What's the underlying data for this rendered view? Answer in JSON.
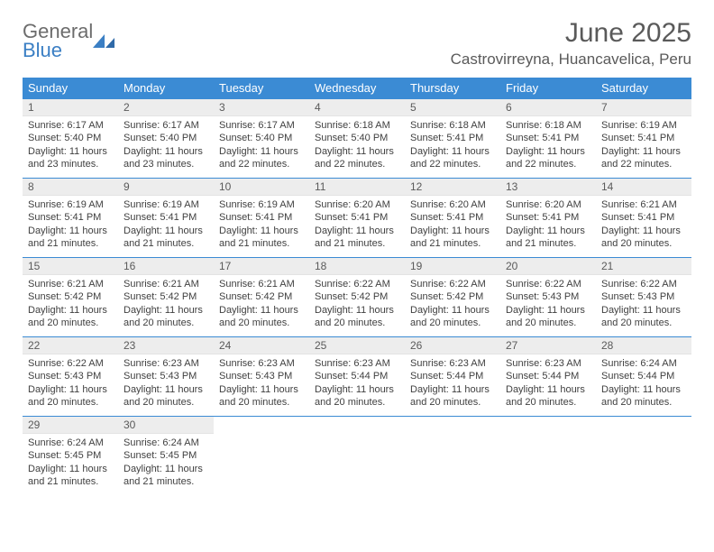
{
  "brand": {
    "word1": "General",
    "word2": "Blue"
  },
  "title": "June 2025",
  "location": "Castrovirreyna, Huancavelica, Peru",
  "colors": {
    "header_bg": "#3b8bd4",
    "accent": "#3b7fc4",
    "daynum_bg": "#ededed"
  },
  "weekdays": [
    "Sunday",
    "Monday",
    "Tuesday",
    "Wednesday",
    "Thursday",
    "Friday",
    "Saturday"
  ],
  "weeks": [
    [
      {
        "n": "1",
        "sr": "Sunrise: 6:17 AM",
        "ss": "Sunset: 5:40 PM",
        "dl": "Daylight: 11 hours and 23 minutes."
      },
      {
        "n": "2",
        "sr": "Sunrise: 6:17 AM",
        "ss": "Sunset: 5:40 PM",
        "dl": "Daylight: 11 hours and 23 minutes."
      },
      {
        "n": "3",
        "sr": "Sunrise: 6:17 AM",
        "ss": "Sunset: 5:40 PM",
        "dl": "Daylight: 11 hours and 22 minutes."
      },
      {
        "n": "4",
        "sr": "Sunrise: 6:18 AM",
        "ss": "Sunset: 5:40 PM",
        "dl": "Daylight: 11 hours and 22 minutes."
      },
      {
        "n": "5",
        "sr": "Sunrise: 6:18 AM",
        "ss": "Sunset: 5:41 PM",
        "dl": "Daylight: 11 hours and 22 minutes."
      },
      {
        "n": "6",
        "sr": "Sunrise: 6:18 AM",
        "ss": "Sunset: 5:41 PM",
        "dl": "Daylight: 11 hours and 22 minutes."
      },
      {
        "n": "7",
        "sr": "Sunrise: 6:19 AM",
        "ss": "Sunset: 5:41 PM",
        "dl": "Daylight: 11 hours and 22 minutes."
      }
    ],
    [
      {
        "n": "8",
        "sr": "Sunrise: 6:19 AM",
        "ss": "Sunset: 5:41 PM",
        "dl": "Daylight: 11 hours and 21 minutes."
      },
      {
        "n": "9",
        "sr": "Sunrise: 6:19 AM",
        "ss": "Sunset: 5:41 PM",
        "dl": "Daylight: 11 hours and 21 minutes."
      },
      {
        "n": "10",
        "sr": "Sunrise: 6:19 AM",
        "ss": "Sunset: 5:41 PM",
        "dl": "Daylight: 11 hours and 21 minutes."
      },
      {
        "n": "11",
        "sr": "Sunrise: 6:20 AM",
        "ss": "Sunset: 5:41 PM",
        "dl": "Daylight: 11 hours and 21 minutes."
      },
      {
        "n": "12",
        "sr": "Sunrise: 6:20 AM",
        "ss": "Sunset: 5:41 PM",
        "dl": "Daylight: 11 hours and 21 minutes."
      },
      {
        "n": "13",
        "sr": "Sunrise: 6:20 AM",
        "ss": "Sunset: 5:41 PM",
        "dl": "Daylight: 11 hours and 21 minutes."
      },
      {
        "n": "14",
        "sr": "Sunrise: 6:21 AM",
        "ss": "Sunset: 5:41 PM",
        "dl": "Daylight: 11 hours and 20 minutes."
      }
    ],
    [
      {
        "n": "15",
        "sr": "Sunrise: 6:21 AM",
        "ss": "Sunset: 5:42 PM",
        "dl": "Daylight: 11 hours and 20 minutes."
      },
      {
        "n": "16",
        "sr": "Sunrise: 6:21 AM",
        "ss": "Sunset: 5:42 PM",
        "dl": "Daylight: 11 hours and 20 minutes."
      },
      {
        "n": "17",
        "sr": "Sunrise: 6:21 AM",
        "ss": "Sunset: 5:42 PM",
        "dl": "Daylight: 11 hours and 20 minutes."
      },
      {
        "n": "18",
        "sr": "Sunrise: 6:22 AM",
        "ss": "Sunset: 5:42 PM",
        "dl": "Daylight: 11 hours and 20 minutes."
      },
      {
        "n": "19",
        "sr": "Sunrise: 6:22 AM",
        "ss": "Sunset: 5:42 PM",
        "dl": "Daylight: 11 hours and 20 minutes."
      },
      {
        "n": "20",
        "sr": "Sunrise: 6:22 AM",
        "ss": "Sunset: 5:43 PM",
        "dl": "Daylight: 11 hours and 20 minutes."
      },
      {
        "n": "21",
        "sr": "Sunrise: 6:22 AM",
        "ss": "Sunset: 5:43 PM",
        "dl": "Daylight: 11 hours and 20 minutes."
      }
    ],
    [
      {
        "n": "22",
        "sr": "Sunrise: 6:22 AM",
        "ss": "Sunset: 5:43 PM",
        "dl": "Daylight: 11 hours and 20 minutes."
      },
      {
        "n": "23",
        "sr": "Sunrise: 6:23 AM",
        "ss": "Sunset: 5:43 PM",
        "dl": "Daylight: 11 hours and 20 minutes."
      },
      {
        "n": "24",
        "sr": "Sunrise: 6:23 AM",
        "ss": "Sunset: 5:43 PM",
        "dl": "Daylight: 11 hours and 20 minutes."
      },
      {
        "n": "25",
        "sr": "Sunrise: 6:23 AM",
        "ss": "Sunset: 5:44 PM",
        "dl": "Daylight: 11 hours and 20 minutes."
      },
      {
        "n": "26",
        "sr": "Sunrise: 6:23 AM",
        "ss": "Sunset: 5:44 PM",
        "dl": "Daylight: 11 hours and 20 minutes."
      },
      {
        "n": "27",
        "sr": "Sunrise: 6:23 AM",
        "ss": "Sunset: 5:44 PM",
        "dl": "Daylight: 11 hours and 20 minutes."
      },
      {
        "n": "28",
        "sr": "Sunrise: 6:24 AM",
        "ss": "Sunset: 5:44 PM",
        "dl": "Daylight: 11 hours and 20 minutes."
      }
    ],
    [
      {
        "n": "29",
        "sr": "Sunrise: 6:24 AM",
        "ss": "Sunset: 5:45 PM",
        "dl": "Daylight: 11 hours and 21 minutes."
      },
      {
        "n": "30",
        "sr": "Sunrise: 6:24 AM",
        "ss": "Sunset: 5:45 PM",
        "dl": "Daylight: 11 hours and 21 minutes."
      },
      {
        "n": "",
        "sr": "",
        "ss": "",
        "dl": "",
        "empty": true
      },
      {
        "n": "",
        "sr": "",
        "ss": "",
        "dl": "",
        "empty": true
      },
      {
        "n": "",
        "sr": "",
        "ss": "",
        "dl": "",
        "empty": true
      },
      {
        "n": "",
        "sr": "",
        "ss": "",
        "dl": "",
        "empty": true
      },
      {
        "n": "",
        "sr": "",
        "ss": "",
        "dl": "",
        "empty": true
      }
    ]
  ]
}
